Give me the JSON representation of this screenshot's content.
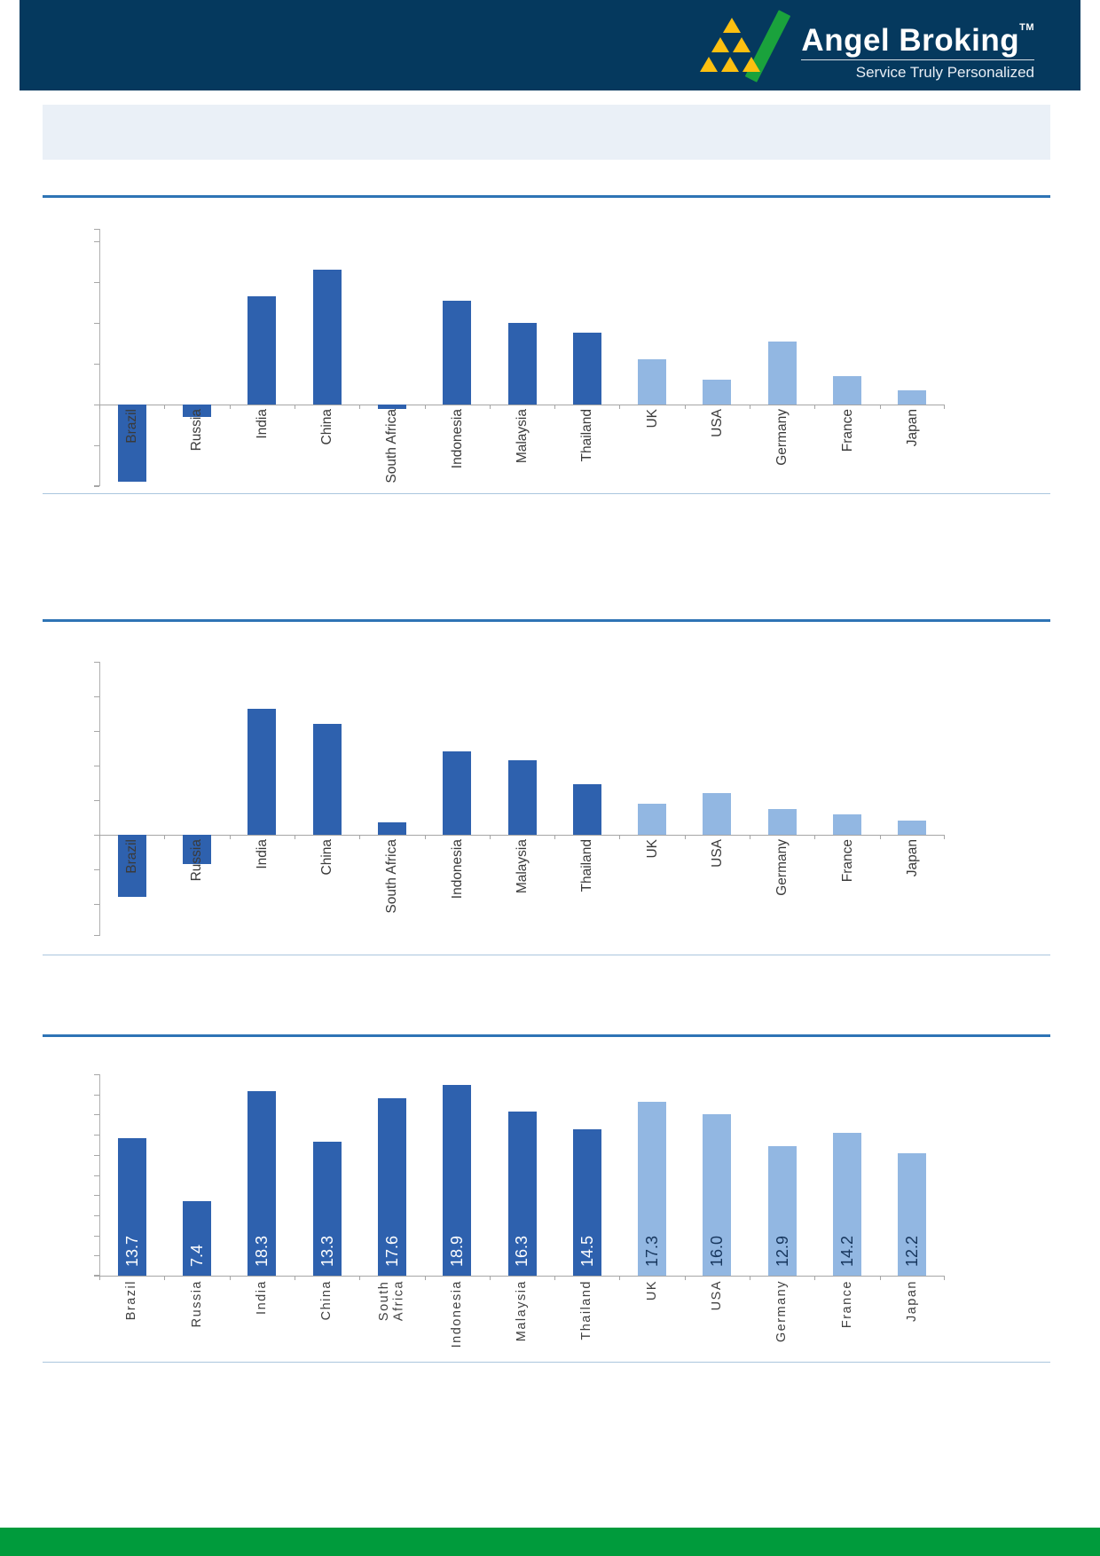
{
  "header": {
    "brand": "Angel Broking",
    "trademark": "TM",
    "tagline": "Service Truly Personalized",
    "colors": {
      "navy": "#05395e",
      "logo_green": "#1aa23c",
      "logo_yellow": "#fdc010"
    }
  },
  "title_banner": {
    "text": ""
  },
  "chart_data": [
    {
      "type": "bar",
      "title": "",
      "categories": [
        "Brazil",
        "Russia",
        "India",
        "China",
        "South Africa",
        "Indonesia",
        "Malaysia",
        "Thailand",
        "UK",
        "USA",
        "Germany",
        "France",
        "Japan"
      ],
      "values": [
        -3.8,
        -0.6,
        5.3,
        6.6,
        -0.2,
        5.1,
        4.0,
        3.5,
        2.2,
        1.2,
        3.1,
        1.4,
        0.7
      ],
      "ylim": [
        -4.0,
        8.6
      ],
      "tick_step": 2,
      "y_tick_labels_visible": false,
      "grid": false,
      "legend": "none",
      "bar_color_emerging": "#2e61ae",
      "bar_color_developed": "#92b7e2",
      "developed_from_index": 8,
      "value_labels": null
    },
    {
      "type": "bar",
      "title": "",
      "categories": [
        "Brazil",
        "Russia",
        "India",
        "China",
        "South Africa",
        "Indonesia",
        "Malaysia",
        "Thailand",
        "UK",
        "USA",
        "Germany",
        "France",
        "Japan"
      ],
      "values": [
        -3.6,
        -1.7,
        7.3,
        6.4,
        0.7,
        4.8,
        4.3,
        2.9,
        1.8,
        2.4,
        1.5,
        1.2,
        0.8
      ],
      "ylim": [
        -5.85,
        10
      ],
      "tick_step": 2,
      "y_tick_labels_visible": false,
      "grid": false,
      "legend": "none",
      "bar_color_emerging": "#2e61ae",
      "bar_color_developed": "#92b7e2",
      "developed_from_index": 8,
      "value_labels": null
    },
    {
      "type": "bar",
      "title": "",
      "categories": [
        "Brazil",
        "Russia",
        "India",
        "China",
        "South Africa",
        "Indonesia",
        "Malaysia",
        "Thailand",
        "UK",
        "USA",
        "Germany",
        "France",
        "Japan"
      ],
      "values": [
        13.7,
        7.4,
        18.3,
        13.3,
        17.6,
        18.9,
        16.3,
        14.5,
        17.3,
        16.0,
        12.9,
        14.2,
        12.2
      ],
      "value_labels": [
        "13.7",
        "7.4",
        "18.3",
        "13.3",
        "17.6",
        "18.9",
        "16.3",
        "14.5",
        "17.3",
        "16.0",
        "12.9",
        "14.2",
        "12.2"
      ],
      "value_label_color_on_dark": "#ffffff",
      "value_label_color_on_light": "#17365d",
      "ylim": [
        0,
        20
      ],
      "tick_step": 2,
      "y_tick_labels_visible": false,
      "grid": false,
      "legend": "none",
      "bar_color_emerging": "#2e61ae",
      "bar_color_developed": "#92b7e2",
      "developed_from_index": 8,
      "wrap_spaces": true
    }
  ],
  "footer": {
    "band_color": "#009b3c"
  }
}
